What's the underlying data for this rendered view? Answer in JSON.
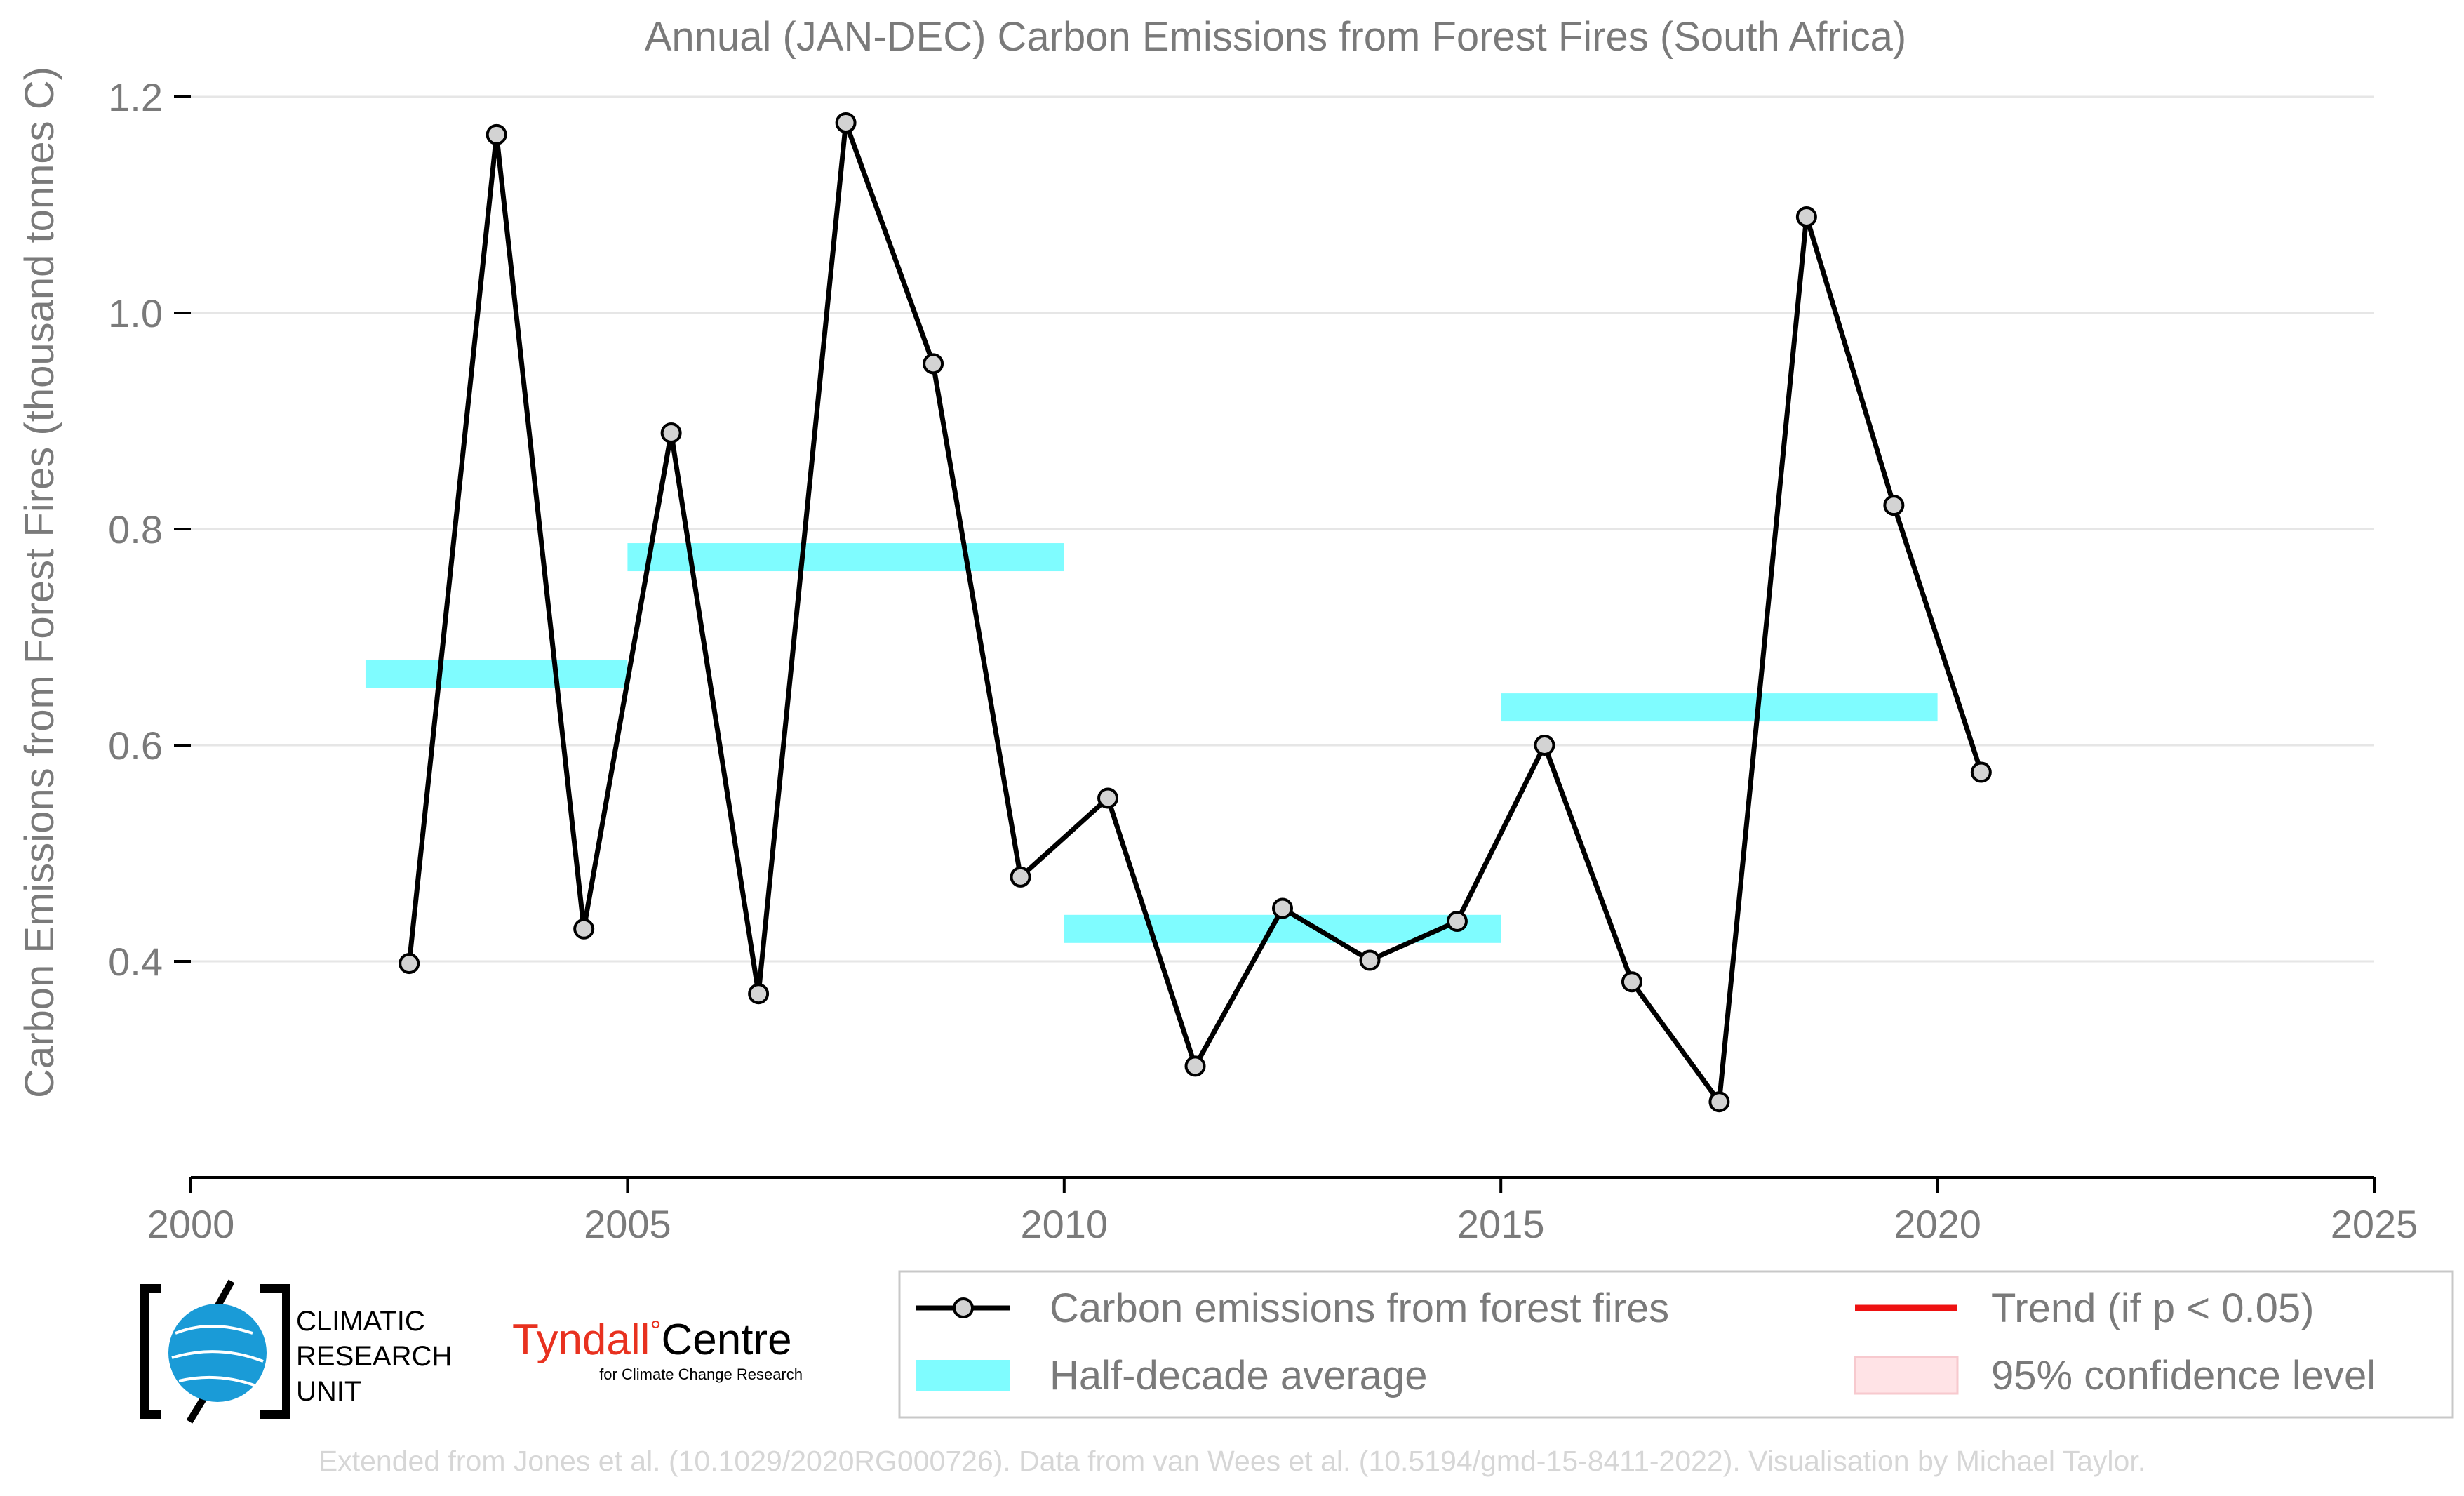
{
  "chart_data": {
    "type": "line",
    "title": "Annual (JAN-DEC) Carbon Emissions from Forest Fires (South Africa)",
    "ylabel": "Carbon Emissions from Forest Fires (thousand tonnes C)",
    "xlabel": "",
    "xlim": [
      2000,
      2025
    ],
    "ylim": [
      0.2,
      1.2
    ],
    "xticks": [
      2000,
      2005,
      2010,
      2015,
      2020,
      2025
    ],
    "yticks": [
      0.4,
      0.6,
      0.8,
      1.0,
      1.2
    ],
    "ytick_labels": [
      "0.4",
      "0.6",
      "0.8",
      "1.0",
      "1.2"
    ],
    "grid": "horizontal",
    "series": [
      {
        "name": "Carbon emissions from forest fires",
        "color": "#000000",
        "marker_fill": "#d3d3d3",
        "x": [
          2002.5,
          2003.5,
          2004.5,
          2005.5,
          2006.5,
          2007.5,
          2008.5,
          2009.5,
          2010.5,
          2011.5,
          2012.5,
          2013.5,
          2014.5,
          2015.5,
          2016.5,
          2017.5,
          2018.5,
          2019.5,
          2020.5
        ],
        "y": [
          0.398,
          1.165,
          0.43,
          0.889,
          0.37,
          1.176,
          0.953,
          0.478,
          0.551,
          0.303,
          0.449,
          0.401,
          0.437,
          0.6,
          0.381,
          0.27,
          1.089,
          0.822,
          0.575
        ]
      }
    ],
    "half_decade_average": {
      "name": "Half-decade average",
      "color": "#7ffcff",
      "segments": [
        {
          "x0": 2002,
          "x1": 2005,
          "y": 0.666
        },
        {
          "x0": 2005,
          "x1": 2010,
          "y": 0.774
        },
        {
          "x0": 2010,
          "x1": 2015,
          "y": 0.43
        },
        {
          "x0": 2015,
          "x1": 2020,
          "y": 0.635
        }
      ]
    },
    "legend": {
      "placement": "bottom",
      "entries": [
        {
          "label": "Carbon emissions from forest fires",
          "kind": "line-marker",
          "color": "#000000"
        },
        {
          "label": "Trend (if p < 0.05)",
          "kind": "line",
          "color": "#ee1111"
        },
        {
          "label": "Half-decade average",
          "kind": "band",
          "color": "#7ffcff"
        },
        {
          "label": "95% confidence level",
          "kind": "patch",
          "color": "#ffe3e6"
        }
      ]
    }
  },
  "logos": {
    "cru": {
      "line1": "CLIMATIC",
      "line2": "RESEARCH",
      "line3": "UNIT",
      "color": "#1a9bd7"
    },
    "tyndall": {
      "name_part1": "Tyndall",
      "degree": "°",
      "name_part2": "Centre",
      "subtitle": "for Climate Change Research",
      "color": "#e8311f"
    }
  },
  "footer": {
    "credit": "Extended from Jones et al. (10.1029/2020RG000726). Data from van Wees et al. (10.5194/gmd-15-8411-2022). Visualisation by Michael Taylor."
  }
}
